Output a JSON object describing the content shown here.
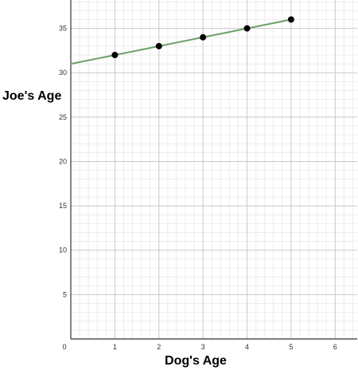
{
  "chart_data": {
    "type": "line",
    "xlabel": "Dog's Age",
    "ylabel": "Joe's Age",
    "xlim": [
      0,
      6.5
    ],
    "ylim": [
      0,
      38.2
    ],
    "x_ticks": [
      0,
      1,
      2,
      3,
      4,
      5,
      6
    ],
    "y_ticks": [
      5,
      10,
      15,
      20,
      25,
      30,
      35
    ],
    "grid": true,
    "series": [
      {
        "type": "scatter",
        "x": [
          1,
          2,
          3,
          4,
          5
        ],
        "y": [
          32,
          33,
          34,
          35,
          36
        ]
      },
      {
        "type": "line",
        "x": [
          0,
          5
        ],
        "y": [
          31,
          36
        ]
      }
    ],
    "colors": {
      "line": "#6aa06a",
      "points": "#000000",
      "major_grid": "#c8c8c8",
      "minor_grid": "#ececec",
      "axis": "#333333"
    }
  }
}
